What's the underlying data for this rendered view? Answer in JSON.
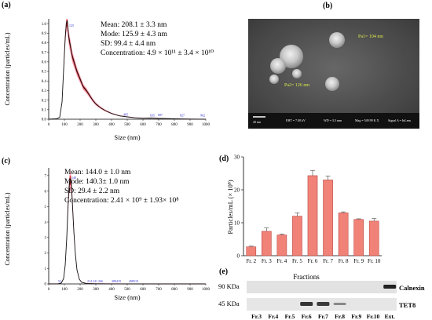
{
  "panel_labels": {
    "a": "(a)",
    "b": "(b)",
    "c": "(c)",
    "d": "(d)",
    "e": "(e)"
  },
  "sem": {
    "label_pa1": "Pa1= 104 nm",
    "label_pa2": "Pa2= 126 nm",
    "footer": {
      "scale": "20 nm",
      "eht": "EHT = 7.00 kV",
      "wd": "WD = 3.5 mm",
      "mag": "Mag = 549.99 K X",
      "signal": "Signal A = InLens"
    }
  },
  "chart_data": [
    {
      "id": "a",
      "type": "line",
      "xlabel": "Size (nm)",
      "ylabel": "Concentration (particles/mL)",
      "xlim": [
        0,
        1000
      ],
      "ylim": [
        0,
        1.05
      ],
      "xticks": [
        "0",
        "100",
        "200",
        "300",
        "400",
        "500",
        "600",
        "700",
        "800",
        "900",
        "1000"
      ],
      "yticks": [
        "0.0",
        "0.1",
        "0.2",
        "0.3",
        "0.4",
        "0.5",
        "0.6",
        "0.7",
        "0.8",
        "0.9",
        "1.0"
      ],
      "stats": [
        "Mean: 208.1 ± 3.3 nm",
        "Mode: 125.9 ± 4.3 nm",
        "SD: 99.4 ± 4.4 nm",
        "Concentration: 4.9 × 10¹¹ ± 3.4 × 10¹⁰"
      ],
      "x": [
        0,
        50,
        70,
        85,
        95,
        105,
        112,
        118,
        122,
        126,
        132,
        140,
        150,
        165,
        180,
        200,
        220,
        240,
        260,
        280,
        300,
        330,
        360,
        400,
        450,
        500,
        550,
        600,
        650,
        700,
        800,
        900,
        1000
      ],
      "y": [
        0,
        0.004,
        0.02,
        0.18,
        0.52,
        0.85,
        1.0,
        1.03,
        0.96,
        0.88,
        0.82,
        0.75,
        0.66,
        0.58,
        0.5,
        0.42,
        0.34,
        0.3,
        0.25,
        0.2,
        0.16,
        0.12,
        0.09,
        0.06,
        0.035,
        0.025,
        0.015,
        0.01,
        0.012,
        0.008,
        0.004,
        0.002,
        0
      ],
      "peak_labels": [
        {
          "x": 125,
          "y": 0.96,
          "text": "125"
        },
        {
          "x": 470,
          "y": 0.03,
          "text": "465"
        },
        {
          "x": 640,
          "y": 0.02,
          "text": "635"
        },
        {
          "x": 690,
          "y": 0.025,
          "text": "687"
        },
        {
          "x": 830,
          "y": 0.02,
          "text": "827"
        },
        {
          "x": 960,
          "y": 0.02,
          "text": "962"
        }
      ],
      "colors": {
        "line": "#111111",
        "band": "#c01010",
        "band_light": "#ff6a8a"
      }
    },
    {
      "id": "c",
      "type": "line",
      "xlabel": "Size (nm)",
      "ylabel": "Concentration (particles/mL)",
      "xlim": [
        0,
        1000
      ],
      "ylim": [
        0,
        7.5
      ],
      "xticks": [
        "0",
        "100",
        "200",
        "300",
        "400",
        "500",
        "600",
        "700",
        "800",
        "900",
        "1000"
      ],
      "yticks": [
        "0",
        "1",
        "2",
        "3",
        "4",
        "5",
        "6",
        "7"
      ],
      "stats": [
        "Mean: 144.0 ± 1.0 nm",
        "Mode: 140.3± 1.0 nm",
        "SD: 29.4 ± 2.2 nm",
        "Concentration: 2.41 × 10⁹ ± 1.93× 10⁸"
      ],
      "x": [
        0,
        60,
        80,
        95,
        105,
        115,
        122,
        128,
        134,
        140,
        146,
        152,
        160,
        170,
        180,
        195,
        210,
        240,
        300,
        400,
        500,
        600,
        700,
        800,
        900,
        1000
      ],
      "y": [
        0,
        0.01,
        0.05,
        0.35,
        1.2,
        3.0,
        4.8,
        6.0,
        6.7,
        6.75,
        6.2,
        5.0,
        3.4,
        1.9,
        0.9,
        0.3,
        0.1,
        0.03,
        0.01,
        0.005,
        0.003,
        0.002,
        0.001,
        0,
        0,
        0
      ],
      "peak_labels": [
        {
          "x": 140,
          "y": 6.75,
          "text": "140"
        },
        {
          "x": 55,
          "y": 0.05,
          "text": "52"
        },
        {
          "x": 240,
          "y": 0.05,
          "text": "214 241 266"
        },
        {
          "x": 395,
          "y": 0.05,
          "text": "389419"
        },
        {
          "x": 505,
          "y": 0.05,
          "text": "498519"
        }
      ],
      "colors": {
        "line": "#111111",
        "band": "#c01010",
        "band_light": "#ff6a8a"
      }
    },
    {
      "id": "d",
      "type": "bar",
      "xlabel": "Fractions",
      "ylabel": "Particles/mL (× 10⁸)",
      "ylim": [
        0,
        30
      ],
      "yticks": [
        "0",
        "10",
        "20",
        "30"
      ],
      "categories": [
        "Fr. 2",
        "Fr. 3",
        "Fr. 4",
        "Fr. 5",
        "Fr. 6",
        "Fr. 7",
        "Fr. 8",
        "Fr. 9",
        "Fr. 10"
      ],
      "values": [
        2.7,
        7.4,
        6.3,
        12.0,
        24.3,
        23.0,
        13.0,
        11.0,
        10.5
      ],
      "errors": [
        0.2,
        1.0,
        0.3,
        1.0,
        1.6,
        1.2,
        0.3,
        0.2,
        0.8
      ],
      "colors": {
        "bar": "#f08278",
        "bar_edge": "#b03a34"
      }
    }
  ],
  "western_blot": {
    "markers": [
      "90 KDa",
      "45 KDa"
    ],
    "proteins": [
      "Calnexin",
      "TET8"
    ],
    "lanes": [
      "Fr.3",
      "Fr.4",
      "Fr.5",
      "Fr.6",
      "Fr.7",
      "Fr.8",
      "Fr.9",
      "Fr.10",
      "Ext."
    ]
  }
}
